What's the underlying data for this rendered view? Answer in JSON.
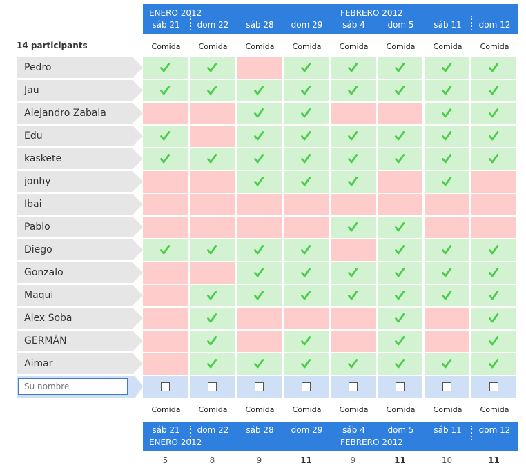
{
  "months": [
    "ENERO 2012",
    "FEBRERO 2012"
  ],
  "columns": [
    {
      "day": "sáb 21",
      "meal": "Comida",
      "count": "5",
      "best": false
    },
    {
      "day": "dom 22",
      "meal": "Comida",
      "count": "8",
      "best": false
    },
    {
      "day": "sáb 28",
      "meal": "Comida",
      "count": "9",
      "best": false
    },
    {
      "day": "dom 29",
      "meal": "Comida",
      "count": "11",
      "best": true
    },
    {
      "day": "sáb 4",
      "meal": "Comida",
      "count": "9",
      "best": false
    },
    {
      "day": "dom 5",
      "meal": "Comida",
      "count": "11",
      "best": true
    },
    {
      "day": "sáb 11",
      "meal": "Comida",
      "count": "10",
      "best": false
    },
    {
      "day": "dom 12",
      "meal": "Comida",
      "count": "11",
      "best": true
    }
  ],
  "participants_label": "14 participants",
  "participants": [
    {
      "name": "Pedro",
      "votes": [
        1,
        1,
        0,
        1,
        1,
        1,
        1,
        1
      ]
    },
    {
      "name": "Jau",
      "votes": [
        1,
        1,
        1,
        1,
        1,
        1,
        1,
        1
      ]
    },
    {
      "name": "Alejandro Zabala",
      "votes": [
        0,
        0,
        1,
        1,
        0,
        0,
        1,
        1
      ]
    },
    {
      "name": "Edu",
      "votes": [
        1,
        0,
        1,
        1,
        1,
        1,
        1,
        1
      ]
    },
    {
      "name": "kaskete",
      "votes": [
        1,
        1,
        1,
        1,
        1,
        1,
        1,
        1
      ]
    },
    {
      "name": "jonhy",
      "votes": [
        0,
        0,
        1,
        1,
        1,
        0,
        1,
        0
      ]
    },
    {
      "name": "Ibai",
      "votes": [
        0,
        0,
        0,
        0,
        0,
        0,
        0,
        0
      ]
    },
    {
      "name": "Pablo",
      "votes": [
        0,
        0,
        0,
        0,
        1,
        1,
        0,
        0
      ]
    },
    {
      "name": "Diego",
      "votes": [
        1,
        1,
        1,
        1,
        0,
        1,
        1,
        1
      ]
    },
    {
      "name": "Gonzalo",
      "votes": [
        0,
        0,
        1,
        1,
        1,
        1,
        1,
        1
      ]
    },
    {
      "name": "Maqui",
      "votes": [
        0,
        1,
        1,
        1,
        1,
        1,
        1,
        1
      ]
    },
    {
      "name": "Alex Soba",
      "votes": [
        0,
        1,
        0,
        0,
        0,
        1,
        0,
        1
      ]
    },
    {
      "name": "GERMÁN",
      "votes": [
        0,
        1,
        0,
        1,
        0,
        1,
        0,
        1
      ]
    },
    {
      "name": "Aimar",
      "votes": [
        0,
        1,
        1,
        1,
        1,
        1,
        1,
        1
      ]
    }
  ],
  "input": {
    "placeholder": "Su nombre"
  },
  "colors": {
    "header": "#2f7fde",
    "yes": "#d2f2d2",
    "no": "#ffcccc",
    "check": "#4ccd4c",
    "input_row": "#cfe0f6"
  },
  "icons": {
    "yes": "checkmark-icon",
    "input": "checkbox"
  }
}
